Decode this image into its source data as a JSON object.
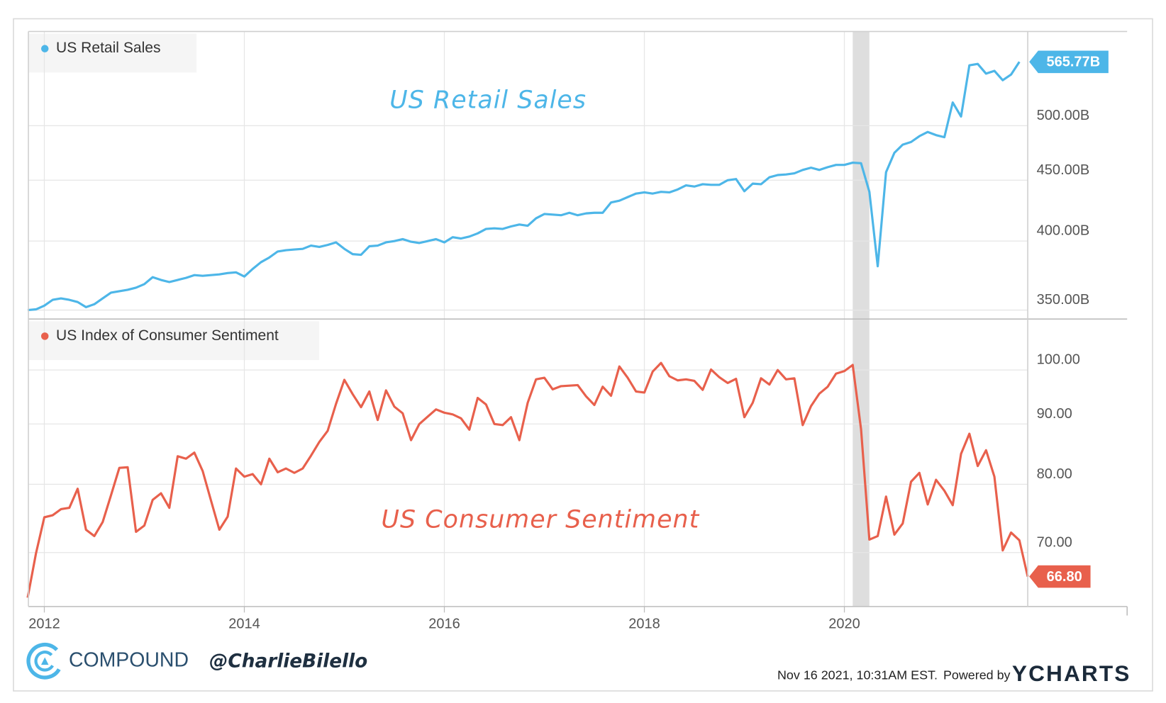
{
  "chart_data": [
    {
      "type": "line",
      "annotation": "US Retail Sales",
      "log_scale": true,
      "grid": true,
      "legend": "top-left",
      "shaded_range": [
        "2020-02",
        "2020-04"
      ],
      "xlim": [
        "2011-11",
        "2021-11"
      ],
      "ylim": [
        345,
        600
      ],
      "yticks": [
        {
          "value": 350,
          "label": "350.00B"
        },
        {
          "value": 400,
          "label": "400.00B"
        },
        {
          "value": 450,
          "label": "450.00B"
        },
        {
          "value": 500,
          "label": "500.00B"
        }
      ],
      "x": [
        "2011-11",
        "2011-12",
        "2012-01",
        "2012-02",
        "2012-03",
        "2012-04",
        "2012-05",
        "2012-06",
        "2012-07",
        "2012-08",
        "2012-09",
        "2012-10",
        "2012-11",
        "2012-12",
        "2013-01",
        "2013-02",
        "2013-03",
        "2013-04",
        "2013-05",
        "2013-06",
        "2013-07",
        "2013-08",
        "2013-09",
        "2013-10",
        "2013-11",
        "2013-12",
        "2014-01",
        "2014-02",
        "2014-03",
        "2014-04",
        "2014-05",
        "2014-06",
        "2014-07",
        "2014-08",
        "2014-09",
        "2014-10",
        "2014-11",
        "2014-12",
        "2015-01",
        "2015-02",
        "2015-03",
        "2015-04",
        "2015-05",
        "2015-06",
        "2015-07",
        "2015-08",
        "2015-09",
        "2015-10",
        "2015-11",
        "2015-12",
        "2016-01",
        "2016-02",
        "2016-03",
        "2016-04",
        "2016-05",
        "2016-06",
        "2016-07",
        "2016-08",
        "2016-09",
        "2016-10",
        "2016-11",
        "2016-12",
        "2017-01",
        "2017-02",
        "2017-03",
        "2017-04",
        "2017-05",
        "2017-06",
        "2017-07",
        "2017-08",
        "2017-09",
        "2017-10",
        "2017-11",
        "2017-12",
        "2018-01",
        "2018-02",
        "2018-03",
        "2018-04",
        "2018-05",
        "2018-06",
        "2018-07",
        "2018-08",
        "2018-09",
        "2018-10",
        "2018-11",
        "2018-12",
        "2019-01",
        "2019-02",
        "2019-03",
        "2019-04",
        "2019-05",
        "2019-06",
        "2019-07",
        "2019-08",
        "2019-09",
        "2019-10",
        "2019-11",
        "2019-12",
        "2020-01",
        "2020-02",
        "2020-03",
        "2020-04",
        "2020-05",
        "2020-06",
        "2020-07",
        "2020-08",
        "2020-09",
        "2020-10",
        "2020-11",
        "2020-12",
        "2021-01",
        "2021-02",
        "2021-03",
        "2021-04",
        "2021-05",
        "2021-06",
        "2021-07",
        "2021-08",
        "2021-09",
        "2021-10"
      ],
      "series": [
        {
          "name": "US Retail Sales",
          "color": "#4db6e8",
          "last_value_label": "565.77B",
          "values": [
            350,
            350.5,
            353,
            357,
            358,
            357,
            355.5,
            352,
            354,
            358,
            362,
            363,
            364,
            365.5,
            368,
            373,
            371,
            369.5,
            371,
            372.5,
            374.5,
            374,
            374.5,
            375,
            376,
            376.5,
            373.5,
            379,
            384,
            387.5,
            392,
            393,
            393.5,
            394,
            396.5,
            395.5,
            397,
            399,
            394,
            390,
            389.5,
            396,
            396.5,
            399,
            400,
            401.5,
            399.5,
            398.5,
            400,
            401.5,
            399,
            403,
            402,
            403.5,
            406,
            409.5,
            410,
            409.5,
            411.5,
            413,
            412,
            418,
            421.5,
            421,
            420.5,
            422.5,
            420.5,
            422,
            422.5,
            422.5,
            431,
            432.5,
            435.5,
            438.5,
            439.5,
            438.5,
            440,
            439.5,
            442,
            445.5,
            444.5,
            446.5,
            446,
            446,
            450,
            451,
            440.5,
            447,
            446.5,
            452.5,
            454.5,
            455,
            456,
            459,
            461,
            459,
            461.5,
            463.5,
            463.5,
            465.5,
            465,
            440,
            381,
            457,
            474.5,
            482,
            484.5,
            490,
            494,
            491,
            489,
            523,
            509,
            562,
            563.5,
            553,
            556,
            546,
            552,
            565.77
          ]
        }
      ]
    },
    {
      "type": "line",
      "annotation": "US Consumer Sentiment",
      "log_scale": true,
      "grid": true,
      "legend": "top-left",
      "shaded_range": [
        "2020-02",
        "2020-04"
      ],
      "xlim": [
        "2011-11",
        "2021-11"
      ],
      "xticks": [
        "2012",
        "2014",
        "2016",
        "2018",
        "2020"
      ],
      "ylim": [
        63,
        110
      ],
      "yticks": [
        {
          "value": 70,
          "label": "70.00"
        },
        {
          "value": 80,
          "label": "80.00"
        },
        {
          "value": 90,
          "label": "90.00"
        },
        {
          "value": 100,
          "label": "100.00"
        }
      ],
      "x": [
        "2011-11",
        "2011-12",
        "2012-01",
        "2012-02",
        "2012-03",
        "2012-04",
        "2012-05",
        "2012-06",
        "2012-07",
        "2012-08",
        "2012-09",
        "2012-10",
        "2012-11",
        "2012-12",
        "2013-01",
        "2013-02",
        "2013-03",
        "2013-04",
        "2013-05",
        "2013-06",
        "2013-07",
        "2013-08",
        "2013-09",
        "2013-10",
        "2013-11",
        "2013-12",
        "2014-01",
        "2014-02",
        "2014-03",
        "2014-04",
        "2014-05",
        "2014-06",
        "2014-07",
        "2014-08",
        "2014-09",
        "2014-10",
        "2014-11",
        "2014-12",
        "2015-01",
        "2015-02",
        "2015-03",
        "2015-04",
        "2015-05",
        "2015-06",
        "2015-07",
        "2015-08",
        "2015-09",
        "2015-10",
        "2015-11",
        "2015-12",
        "2016-01",
        "2016-02",
        "2016-03",
        "2016-04",
        "2016-05",
        "2016-06",
        "2016-07",
        "2016-08",
        "2016-09",
        "2016-10",
        "2016-11",
        "2016-12",
        "2017-01",
        "2017-02",
        "2017-03",
        "2017-04",
        "2017-05",
        "2017-06",
        "2017-07",
        "2017-08",
        "2017-09",
        "2017-10",
        "2017-11",
        "2017-12",
        "2018-01",
        "2018-02",
        "2018-03",
        "2018-04",
        "2018-05",
        "2018-06",
        "2018-07",
        "2018-08",
        "2018-09",
        "2018-10",
        "2018-11",
        "2018-12",
        "2019-01",
        "2019-02",
        "2019-03",
        "2019-04",
        "2019-05",
        "2019-06",
        "2019-07",
        "2019-08",
        "2019-09",
        "2019-10",
        "2019-11",
        "2019-12",
        "2020-01",
        "2020-02",
        "2020-03",
        "2020-04",
        "2020-05",
        "2020-06",
        "2020-07",
        "2020-08",
        "2020-09",
        "2020-10",
        "2020-11",
        "2020-12",
        "2021-01",
        "2021-02",
        "2021-03",
        "2021-04",
        "2021-05",
        "2021-06",
        "2021-07",
        "2021-08",
        "2021-09",
        "2021-10",
        "2021-11"
      ],
      "series": [
        {
          "name": "US Index of Consumer Sentiment",
          "color": "#e8604c",
          "last_value_label": "66.80",
          "values": [
            64.1,
            69.9,
            75.0,
            75.3,
            76.2,
            76.4,
            79.3,
            73.2,
            72.3,
            74.3,
            78.3,
            82.6,
            82.7,
            72.9,
            73.8,
            77.6,
            78.6,
            76.4,
            84.5,
            84.1,
            85.1,
            82.1,
            77.5,
            73.2,
            75.1,
            82.5,
            81.2,
            81.6,
            80.0,
            84.1,
            81.9,
            82.5,
            81.8,
            82.5,
            84.6,
            86.9,
            88.8,
            93.6,
            98.1,
            95.4,
            93.0,
            95.9,
            90.7,
            96.1,
            93.1,
            91.9,
            87.2,
            90.0,
            91.3,
            92.6,
            92.0,
            91.7,
            91.0,
            89.0,
            94.7,
            93.5,
            90.0,
            89.8,
            91.2,
            87.2,
            93.8,
            98.2,
            98.5,
            96.3,
            96.9,
            97.0,
            97.1,
            95.0,
            93.4,
            96.8,
            95.1,
            100.7,
            98.5,
            95.9,
            95.7,
            99.7,
            101.4,
            98.8,
            98.0,
            98.2,
            97.9,
            96.2,
            100.1,
            98.6,
            97.5,
            98.3,
            91.2,
            93.8,
            98.4,
            97.2,
            100.0,
            98.2,
            98.4,
            89.8,
            93.2,
            95.5,
            96.8,
            99.3,
            99.8,
            101.0,
            89.1,
            71.8,
            72.3,
            78.1,
            72.5,
            74.1,
            80.4,
            81.8,
            76.9,
            80.7,
            79.0,
            76.8,
            84.9,
            88.3,
            82.9,
            85.5,
            81.2,
            70.3,
            72.8,
            71.7,
            66.8
          ]
        }
      ]
    }
  ],
  "footer": {
    "brand": "COMPOUND",
    "handle": "@CharlieBilello",
    "timestamp": "Nov 16 2021, 10:31AM EST.",
    "powered": "Powered by",
    "logo": "YCHARTS"
  }
}
